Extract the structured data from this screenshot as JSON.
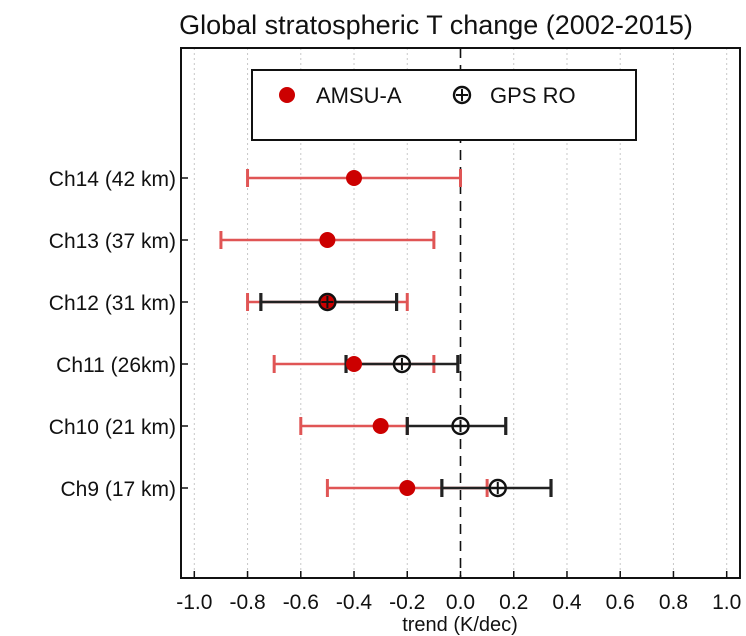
{
  "chart_data": {
    "type": "scatter",
    "title": "Global stratospheric T change (2002-2015)",
    "xlabel": "trend (K/dec)",
    "ylabel": "",
    "xlim": [
      -1.05,
      1.05
    ],
    "xticks": [
      -1.0,
      -0.8,
      -0.6,
      -0.4,
      -0.2,
      0.0,
      0.2,
      0.4,
      0.6,
      0.8,
      1.0
    ],
    "xtick_labels": [
      "-1.0",
      "-0.8",
      "-0.6",
      "-0.4",
      "-0.2",
      "0.0",
      "0.2",
      "0.4",
      "0.6",
      "0.8",
      "1.0"
    ],
    "grid": "vertical-dotted",
    "reference_line": 0.0,
    "legend_position": "top-center",
    "categories": [
      "Ch14 (42 km)",
      "Ch13 (37 km)",
      "Ch12 (31 km)",
      "Ch11 (26km)",
      "Ch10 (21 km)",
      "Ch9 (17 km)"
    ],
    "series": [
      {
        "name": "AMSU-A",
        "color": "#cc0000",
        "error_color": "#e05555",
        "marker": "filled-circle",
        "values": [
          -0.4,
          -0.5,
          -0.5,
          -0.4,
          -0.3,
          -0.2
        ],
        "lower": [
          -0.8,
          -0.9,
          -0.8,
          -0.7,
          -0.6,
          -0.5
        ],
        "upper": [
          0.0,
          -0.1,
          -0.2,
          -0.1,
          -0.2,
          0.1
        ]
      },
      {
        "name": "GPS RO",
        "color": "#111111",
        "error_color": "#222222",
        "marker": "circle-plus",
        "values": [
          null,
          null,
          -0.5,
          -0.22,
          0.0,
          0.14
        ],
        "lower": [
          null,
          null,
          -0.75,
          -0.43,
          -0.2,
          -0.07
        ],
        "upper": [
          null,
          null,
          -0.24,
          -0.01,
          0.17,
          0.34
        ]
      }
    ]
  }
}
